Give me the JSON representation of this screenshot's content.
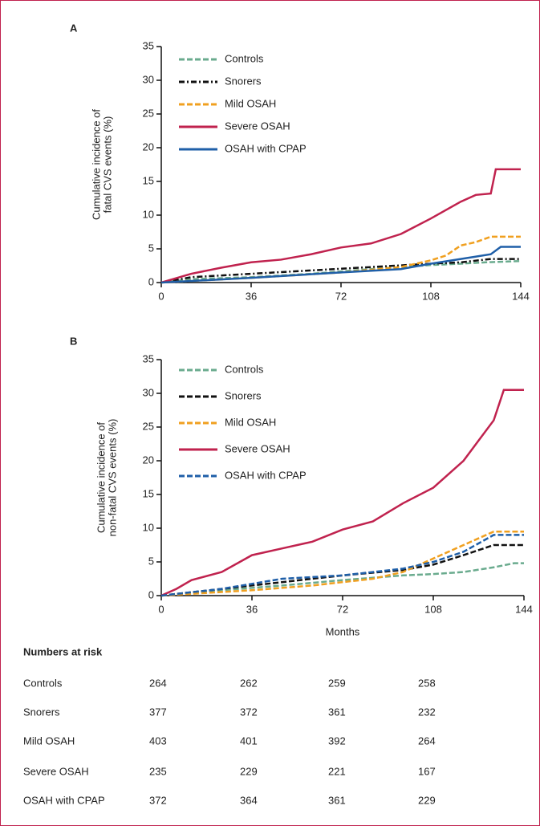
{
  "chart_data": [
    {
      "type": "line",
      "label": "A",
      "ylabel": [
        "Cumulative incidence of",
        "fatal CVS events (%)"
      ],
      "xlim": [
        0,
        144
      ],
      "xticks": [
        0,
        36,
        72,
        108,
        144
      ],
      "ylim": [
        0,
        35
      ],
      "yticks": [
        0,
        5,
        10,
        15,
        20,
        25,
        30,
        35
      ],
      "series": [
        {
          "name": "Controls",
          "color": "#6aab8e",
          "style": "dashed",
          "x": [
            0,
            12,
            36,
            60,
            84,
            108,
            120,
            130,
            144
          ],
          "values": [
            0,
            0.5,
            0.8,
            1.3,
            2,
            2.6,
            2.8,
            3.0,
            3.2
          ]
        },
        {
          "name": "Snorers",
          "color": "#111111",
          "style": "dashdot",
          "x": [
            0,
            12,
            36,
            60,
            84,
            108,
            120,
            132,
            144
          ],
          "values": [
            0,
            0.8,
            1.3,
            1.8,
            2.3,
            2.8,
            3.0,
            3.5,
            3.5
          ]
        },
        {
          "name": "Mild OSAH",
          "color": "#f0a020",
          "style": "dashed",
          "x": [
            0,
            36,
            72,
            96,
            108,
            114,
            120,
            126,
            132,
            144
          ],
          "values": [
            0,
            0.7,
            1.5,
            2.3,
            3.3,
            4,
            5.5,
            6,
            6.8,
            6.8
          ]
        },
        {
          "name": "Severe OSAH",
          "color": "#c0224e",
          "style": "solid",
          "x": [
            0,
            12,
            24,
            36,
            48,
            60,
            72,
            84,
            96,
            108,
            120,
            126,
            132,
            134,
            144
          ],
          "values": [
            0,
            1.3,
            2.2,
            3,
            3.4,
            4.2,
            5.2,
            5.8,
            7.2,
            9.5,
            12,
            13,
            13.2,
            16.8,
            16.8
          ]
        },
        {
          "name": "OSAH with CPAP",
          "color": "#1f5fa8",
          "style": "solid",
          "x": [
            0,
            36,
            72,
            96,
            108,
            120,
            132,
            136,
            144
          ],
          "values": [
            0,
            0.7,
            1.5,
            2.0,
            2.8,
            3.5,
            4.2,
            5.3,
            5.3
          ]
        }
      ]
    },
    {
      "type": "line",
      "label": "B",
      "ylabel": [
        "Cumulative incidence of",
        "non-fatal CVS events (%)"
      ],
      "xlabel": "Months",
      "xlim": [
        0,
        144
      ],
      "xticks": [
        0,
        36,
        72,
        108,
        144
      ],
      "ylim": [
        0,
        35
      ],
      "yticks": [
        0,
        5,
        10,
        15,
        20,
        25,
        30,
        35
      ],
      "series": [
        {
          "name": "Controls",
          "color": "#6aab8e",
          "style": "dashed",
          "x": [
            0,
            24,
            48,
            72,
            96,
            108,
            120,
            132,
            140,
            144
          ],
          "values": [
            0,
            0.8,
            1.5,
            2.3,
            3.0,
            3.2,
            3.5,
            4.2,
            4.8,
            4.8
          ]
        },
        {
          "name": "Snorers",
          "color": "#111111",
          "style": "dashed",
          "x": [
            0,
            24,
            48,
            72,
            96,
            108,
            120,
            132,
            144
          ],
          "values": [
            0,
            1,
            2,
            3,
            3.8,
            4.6,
            6,
            7.5,
            7.5
          ]
        },
        {
          "name": "Mild OSAH",
          "color": "#f0a020",
          "style": "dashed",
          "x": [
            0,
            36,
            60,
            84,
            96,
            108,
            120,
            132,
            144
          ],
          "values": [
            0,
            0.8,
            1.5,
            2.5,
            3.5,
            5.5,
            7.5,
            9.5,
            9.5
          ]
        },
        {
          "name": "Severe OSAH",
          "color": "#c0224e",
          "style": "solid",
          "x": [
            0,
            6,
            12,
            24,
            36,
            48,
            60,
            72,
            84,
            96,
            108,
            114,
            120,
            126,
            132,
            136,
            144
          ],
          "values": [
            0,
            1,
            2.3,
            3.5,
            6,
            7,
            8,
            9.8,
            11,
            13.7,
            16,
            18,
            20,
            23,
            26,
            30.5,
            30.5
          ]
        },
        {
          "name": "OSAH with CPAP",
          "color": "#1f5fa8",
          "style": "dashed",
          "x": [
            0,
            24,
            48,
            72,
            96,
            108,
            120,
            132,
            144
          ],
          "values": [
            0,
            1,
            2.5,
            3,
            4,
            5,
            6.5,
            9,
            9
          ]
        }
      ]
    }
  ],
  "table": {
    "title": "Numbers at risk",
    "rows": [
      [
        "Controls",
        "264",
        "262",
        "259",
        "258"
      ],
      [
        "Snorers",
        "377",
        "372",
        "361",
        "232"
      ],
      [
        "Mild OSAH",
        "403",
        "401",
        "392",
        "264"
      ],
      [
        "Severe OSAH",
        "235",
        "229",
        "221",
        "167"
      ],
      [
        "OSAH with CPAP",
        "372",
        "364",
        "361",
        "229"
      ]
    ]
  }
}
